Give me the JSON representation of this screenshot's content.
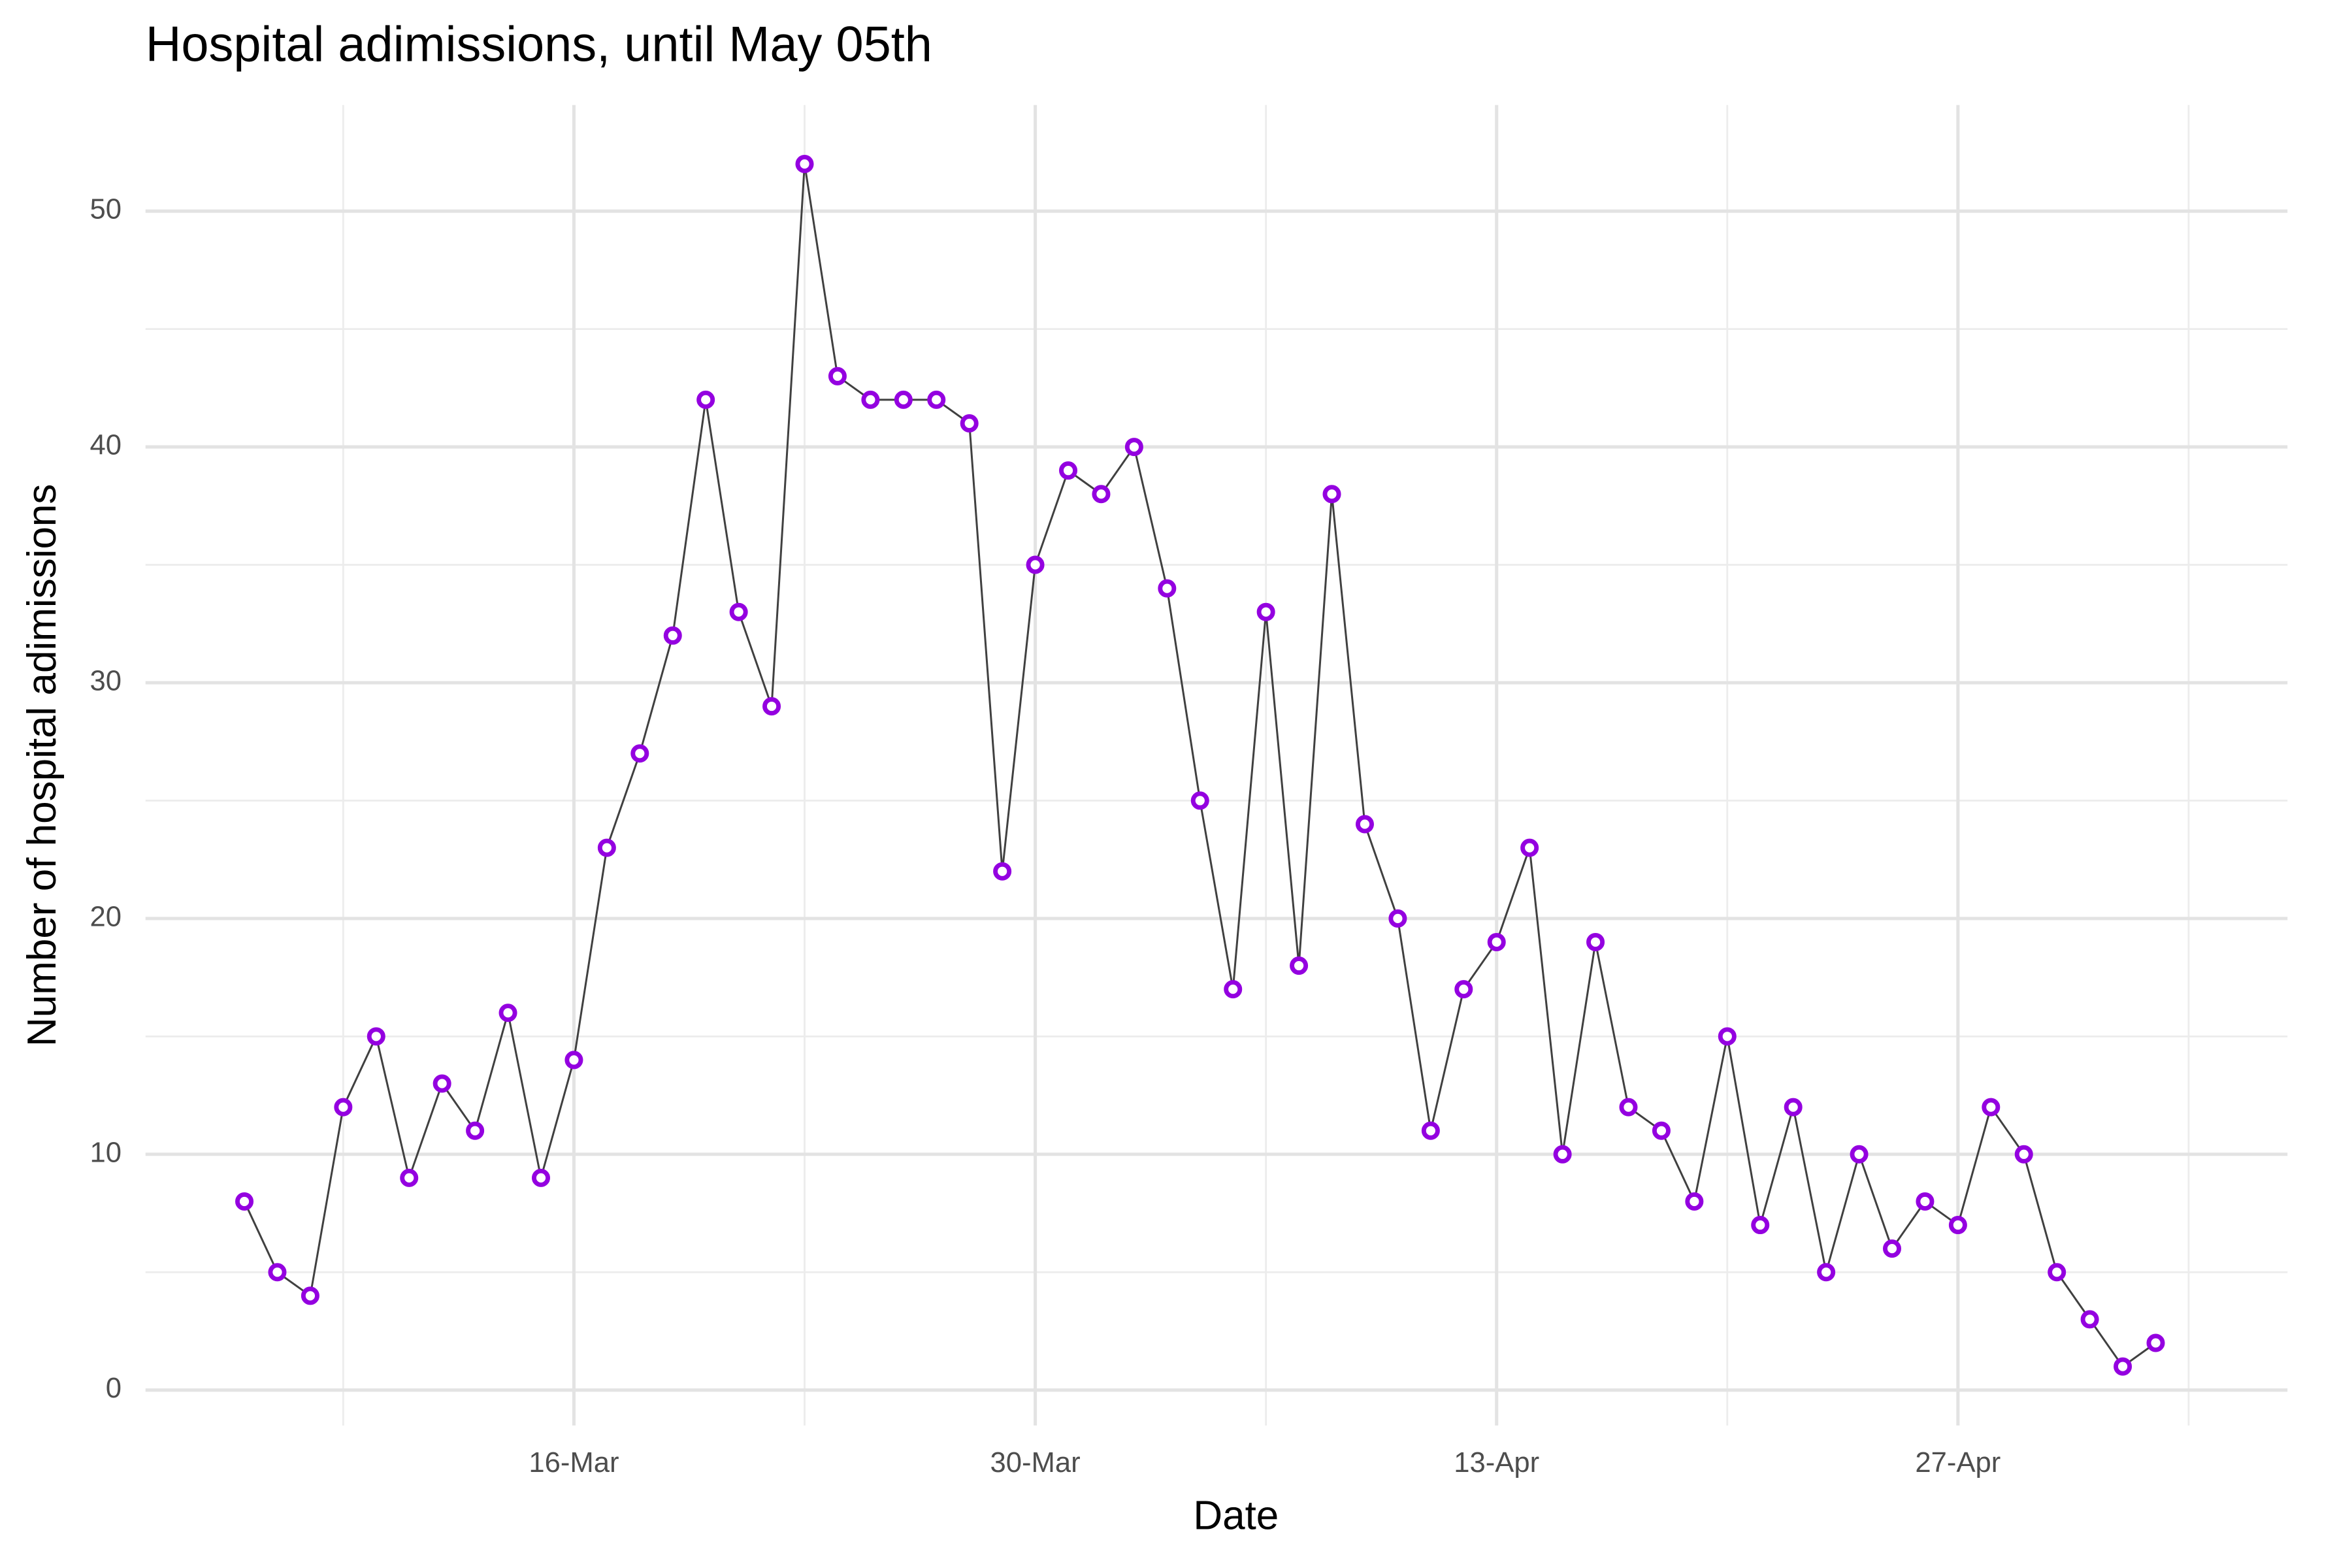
{
  "chart_data": {
    "type": "line",
    "title": "Hospital adimissions, until May 05th",
    "x_label": "Date",
    "y_label": "Number of hospital adimissions",
    "x": [
      "6-Mar",
      "7-Mar",
      "8-Mar",
      "9-Mar",
      "10-Mar",
      "11-Mar",
      "12-Mar",
      "13-Mar",
      "14-Mar",
      "15-Mar",
      "16-Mar",
      "17-Mar",
      "18-Mar",
      "19-Mar",
      "20-Mar",
      "21-Mar",
      "22-Mar",
      "23-Mar",
      "24-Mar",
      "25-Mar",
      "26-Mar",
      "27-Mar",
      "28-Mar",
      "29-Mar",
      "30-Mar",
      "31-Mar",
      "1-Apr",
      "2-Apr",
      "3-Apr",
      "4-Apr",
      "5-Apr",
      "6-Apr",
      "7-Apr",
      "8-Apr",
      "9-Apr",
      "10-Apr",
      "11-Apr",
      "12-Apr",
      "13-Apr",
      "14-Apr",
      "15-Apr",
      "16-Apr",
      "17-Apr",
      "18-Apr",
      "19-Apr",
      "20-Apr",
      "21-Apr",
      "22-Apr",
      "23-Apr",
      "24-Apr",
      "25-Apr",
      "26-Apr",
      "27-Apr",
      "28-Apr",
      "29-Apr",
      "30-Apr",
      "1-May",
      "2-May",
      "3-May"
    ],
    "series": [
      {
        "name": "Hospital admissions",
        "color": "#9400e0",
        "line_color": "#404040",
        "values": [
          8,
          5,
          4,
          12,
          15,
          9,
          13,
          11,
          16,
          9,
          14,
          23,
          27,
          32,
          42,
          33,
          29,
          52,
          43,
          42,
          42,
          42,
          41,
          22,
          35,
          39,
          38,
          40,
          34,
          25,
          17,
          33,
          18,
          38,
          24,
          20,
          11,
          17,
          19,
          23,
          10,
          19,
          12,
          11,
          8,
          15,
          7,
          12,
          5,
          10,
          6,
          8,
          7,
          12,
          10,
          5,
          3,
          1,
          2
        ]
      }
    ],
    "xlim": [
      "3-Mar",
      "7-May"
    ],
    "xticks": [
      "16-Mar",
      "30-Mar",
      "13-Apr",
      "27-Apr"
    ],
    "ylim": [
      -1.5,
      54.5
    ],
    "yticks": [
      0,
      10,
      20,
      30,
      40,
      50
    ],
    "grid": true
  }
}
